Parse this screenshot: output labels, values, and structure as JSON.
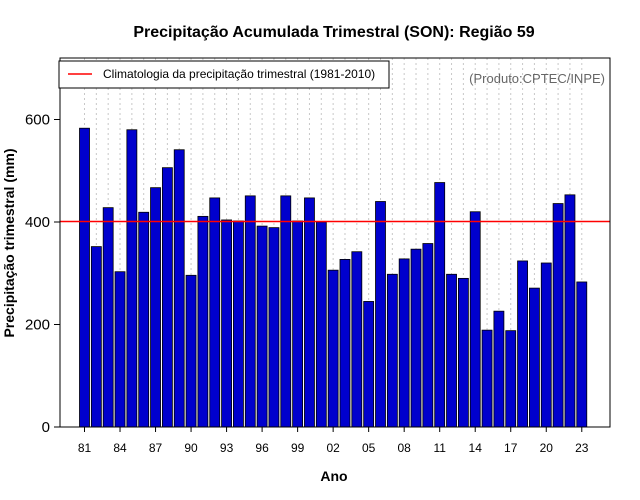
{
  "chart_data": {
    "type": "bar",
    "title": "Precipitação Acumulada Trimestral (SON): Região 59",
    "xlabel": "Ano",
    "ylabel": "Precipitação trimestral (mm)",
    "ylim": [
      0,
      720
    ],
    "yticks": [
      0,
      200,
      400,
      600
    ],
    "xtick_labels": [
      "81",
      "84",
      "87",
      "90",
      "93",
      "96",
      "99",
      "02",
      "05",
      "08",
      "11",
      "14",
      "17",
      "20",
      "23"
    ],
    "categories": [
      "1981",
      "1982",
      "1983",
      "1984",
      "1985",
      "1986",
      "1987",
      "1988",
      "1989",
      "1990",
      "1991",
      "1992",
      "1993",
      "1994",
      "1995",
      "1996",
      "1997",
      "1998",
      "1999",
      "2000",
      "2001",
      "2002",
      "2003",
      "2004",
      "2005",
      "2006",
      "2007",
      "2008",
      "2009",
      "2010",
      "2011",
      "2012",
      "2013",
      "2014",
      "2015",
      "2016",
      "2017",
      "2018",
      "2019",
      "2020",
      "2021",
      "2022",
      "2023"
    ],
    "values": [
      583,
      352,
      428,
      303,
      580,
      419,
      467,
      506,
      541,
      296,
      411,
      447,
      404,
      402,
      451,
      392,
      389,
      451,
      402,
      447,
      400,
      306,
      327,
      342,
      245,
      440,
      298,
      328,
      347,
      358,
      477,
      298,
      290,
      420,
      189,
      226,
      188,
      324,
      271,
      320,
      436,
      453,
      283
    ],
    "reference_line": {
      "label": "Climatologia da precipitação trimestral (1981-2010)",
      "value": 401,
      "color": "#ff0000"
    },
    "bar_color": "#0000cd",
    "source_note": "(Produto:CPTEC/INPE)",
    "grid": "vertical dotted",
    "legend_position": "top-left"
  }
}
